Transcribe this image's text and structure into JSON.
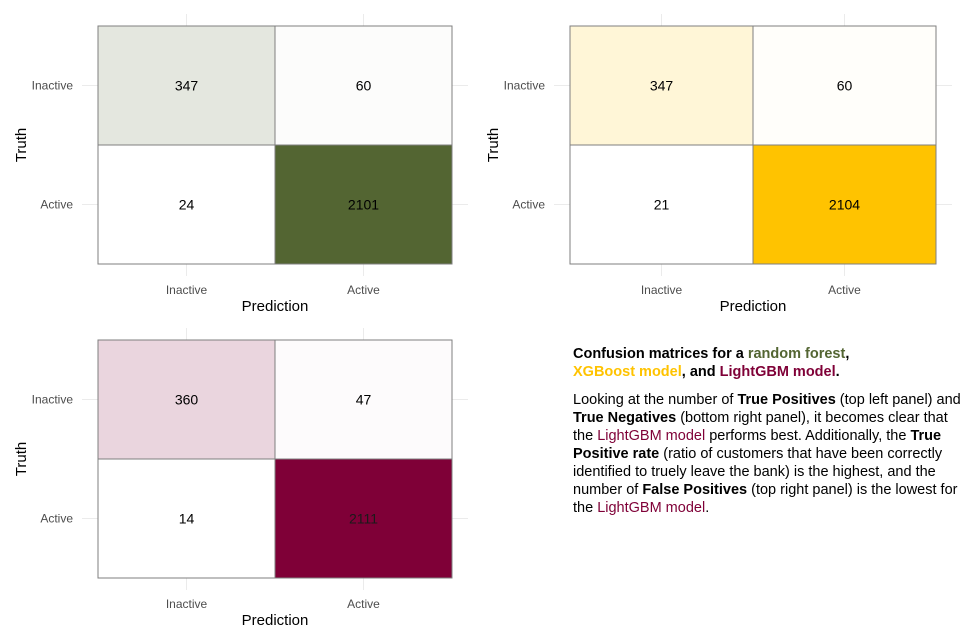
{
  "chart_data": [
    {
      "type": "heatmap",
      "xlabel": "Prediction",
      "ylabel": "Truth",
      "x_categories": [
        "Inactive",
        "Active"
      ],
      "y_categories": [
        "Inactive",
        "Active"
      ],
      "values": [
        [
          347,
          60
        ],
        [
          24,
          2101
        ]
      ],
      "colors": {
        "high": "#536532",
        "low": "#ffffff"
      }
    },
    {
      "type": "heatmap",
      "xlabel": "Prediction",
      "ylabel": "Truth",
      "x_categories": [
        "Inactive",
        "Active"
      ],
      "y_categories": [
        "Inactive",
        "Active"
      ],
      "values": [
        [
          347,
          60
        ],
        [
          21,
          2104
        ]
      ],
      "colors": {
        "high": "#ffc300",
        "low": "#ffffff"
      }
    },
    {
      "type": "heatmap",
      "xlabel": "Prediction",
      "ylabel": "Truth",
      "x_categories": [
        "Inactive",
        "Active"
      ],
      "y_categories": [
        "Inactive",
        "Active"
      ],
      "values": [
        [
          360,
          47
        ],
        [
          14,
          2111
        ]
      ],
      "colors": {
        "high": "#7f0037",
        "low": "#ffffff"
      }
    }
  ],
  "caption": {
    "title": {
      "t1": "Confusion matrices for a ",
      "rf": "random forest",
      "t2": ",",
      "xgb": "XGBoost model",
      "t3": ", and ",
      "lgbm": "LightGBM model",
      "t4": "."
    },
    "body": {
      "b1": "Looking at the number of ",
      "tp": "True Positives",
      "b2": " (top left panel) and ",
      "tn": "True Negatives",
      "b3": " (bottom right panel), it becomes clear that the ",
      "lgbm1": "LightGBM model",
      "b4": " performs best. Additionally, the ",
      "tpr": "True Positive rate",
      "b5": " (ratio of customers that have been correctly identified to truely leave the bank) is the highest, and the number of ",
      "fp": "False Positives",
      "b6": " (top right panel) is the lowest for the ",
      "lgbm2": "LightGBM model",
      "b7": "."
    },
    "colors": {
      "rf": "#536532",
      "xgb": "#ffc300",
      "lgbm": "#7f0037"
    }
  }
}
